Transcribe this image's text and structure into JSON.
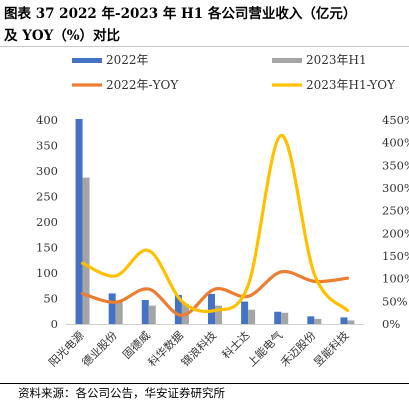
{
  "caption": {
    "line1": "图表 37 2022 年-2023 年 H1 各公司营业收入（亿元）",
    "line2": "及 YOY（%）对比"
  },
  "source": "资料来源：各公司公告，华安证券研究所",
  "chart_data": {
    "type": "bar",
    "categories": [
      "阳光电源",
      "德业股份",
      "固德威",
      "科华数据",
      "锦浪科技",
      "科士达",
      "上能电气",
      "禾迈股份",
      "昱能科技"
    ],
    "series": [
      {
        "name": "2022年",
        "kind": "bar",
        "axis": "left",
        "color": "#4472C4",
        "values": [
          402,
          60,
          47,
          57,
          59,
          44,
          24,
          15,
          13
        ]
      },
      {
        "name": "2023年H1",
        "kind": "bar",
        "axis": "left",
        "color": "#A5A5A5",
        "values": [
          287,
          45,
          36,
          39,
          36,
          28,
          22,
          10,
          7
        ]
      },
      {
        "name": "2022年-YOY",
        "kind": "line",
        "axis": "right",
        "color": "#ED7D31",
        "values": [
          0.67,
          0.48,
          0.77,
          0.19,
          0.77,
          0.61,
          1.15,
          0.94,
          1.01
        ]
      },
      {
        "name": "2023年H1-YOY",
        "kind": "line",
        "axis": "right",
        "color": "#FFC000",
        "values": [
          1.34,
          1.06,
          1.62,
          0.5,
          0.3,
          0.85,
          4.16,
          1.1,
          0.3
        ]
      }
    ],
    "ylim_left": [
      0,
      400
    ],
    "yticks_left": [
      "0",
      "50",
      "100",
      "150",
      "200",
      "250",
      "300",
      "350",
      "400"
    ],
    "ylim_right": [
      0,
      4.5
    ],
    "yticks_right": [
      "0%",
      "50%",
      "100%",
      "150%",
      "200%",
      "250%",
      "300%",
      "350%",
      "400%",
      "450%"
    ],
    "grid": false,
    "legend": "top"
  }
}
